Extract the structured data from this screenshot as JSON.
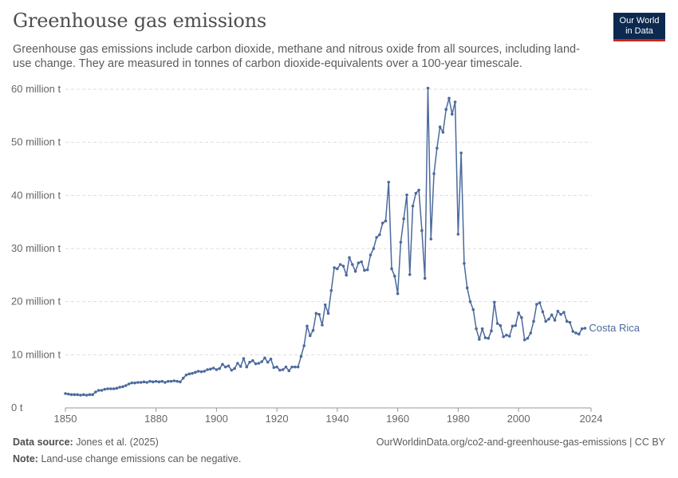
{
  "header": {
    "title": "Greenhouse gas emissions",
    "subtitle": "Greenhouse gas emissions include carbon dioxide, methane and nitrous oxide from all sources, including land-use change. They are measured in tonnes of carbon dioxide-equivalents over a 100-year timescale.",
    "logo_line1": "Our World",
    "logo_line2": "in Data"
  },
  "footer": {
    "source_label": "Data source:",
    "source_value": "Jones et al. (2025)",
    "url": "OurWorldinData.org/co2-and-greenhouse-gas-emissions",
    "license": "| CC BY",
    "note_label": "Note:",
    "note_value": "Land-use change emissions can be negative."
  },
  "colors": {
    "series": "#4c6a9c",
    "grid": "#dddddd",
    "axis": "#999999",
    "text": "#666666"
  },
  "chart_data": {
    "type": "line",
    "title": "Greenhouse gas emissions",
    "ylim": [
      0,
      60000000
    ],
    "xlim": [
      1850,
      2024
    ],
    "yticks": [
      {
        "value": 0,
        "label": "0 t"
      },
      {
        "value": 10000000,
        "label": "10 million t"
      },
      {
        "value": 20000000,
        "label": "20 million t"
      },
      {
        "value": 30000000,
        "label": "30 million t"
      },
      {
        "value": 40000000,
        "label": "40 million t"
      },
      {
        "value": 50000000,
        "label": "50 million t"
      },
      {
        "value": 60000000,
        "label": "60 million t"
      }
    ],
    "xticks": [
      {
        "value": 1850,
        "label": "1850"
      },
      {
        "value": 1880,
        "label": "1880"
      },
      {
        "value": 1900,
        "label": "1900"
      },
      {
        "value": 1920,
        "label": "1920"
      },
      {
        "value": 1940,
        "label": "1940"
      },
      {
        "value": 1960,
        "label": "1960"
      },
      {
        "value": 1980,
        "label": "1980"
      },
      {
        "value": 2000,
        "label": "2000"
      },
      {
        "value": 2024,
        "label": "2024"
      }
    ],
    "grid": true,
    "series": [
      {
        "name": "Costa Rica",
        "color": "#4c6a9c",
        "points": [
          [
            1850,
            2.7
          ],
          [
            1851,
            2.6
          ],
          [
            1852,
            2.5
          ],
          [
            1853,
            2.5
          ],
          [
            1854,
            2.5
          ],
          [
            1855,
            2.4
          ],
          [
            1856,
            2.5
          ],
          [
            1857,
            2.4
          ],
          [
            1858,
            2.5
          ],
          [
            1859,
            2.5
          ],
          [
            1860,
            3.0
          ],
          [
            1861,
            3.3
          ],
          [
            1862,
            3.3
          ],
          [
            1863,
            3.5
          ],
          [
            1864,
            3.6
          ],
          [
            1865,
            3.6
          ],
          [
            1866,
            3.6
          ],
          [
            1867,
            3.7
          ],
          [
            1868,
            3.9
          ],
          [
            1869,
            4.0
          ],
          [
            1870,
            4.2
          ],
          [
            1871,
            4.5
          ],
          [
            1872,
            4.7
          ],
          [
            1873,
            4.7
          ],
          [
            1874,
            4.8
          ],
          [
            1875,
            4.8
          ],
          [
            1876,
            4.9
          ],
          [
            1877,
            4.8
          ],
          [
            1878,
            5.0
          ],
          [
            1879,
            4.9
          ],
          [
            1880,
            5.0
          ],
          [
            1881,
            4.9
          ],
          [
            1882,
            5.0
          ],
          [
            1883,
            4.8
          ],
          [
            1884,
            5.0
          ],
          [
            1885,
            5.0
          ],
          [
            1886,
            5.1
          ],
          [
            1887,
            5.0
          ],
          [
            1888,
            4.9
          ],
          [
            1889,
            5.6
          ],
          [
            1890,
            6.2
          ],
          [
            1891,
            6.4
          ],
          [
            1892,
            6.5
          ],
          [
            1893,
            6.7
          ],
          [
            1894,
            6.9
          ],
          [
            1895,
            6.8
          ],
          [
            1896,
            6.9
          ],
          [
            1897,
            7.2
          ],
          [
            1898,
            7.3
          ],
          [
            1899,
            7.5
          ],
          [
            1900,
            7.2
          ],
          [
            1901,
            7.4
          ],
          [
            1902,
            8.2
          ],
          [
            1903,
            7.7
          ],
          [
            1904,
            7.9
          ],
          [
            1905,
            7.1
          ],
          [
            1906,
            7.4
          ],
          [
            1907,
            8.4
          ],
          [
            1908,
            7.8
          ],
          [
            1909,
            9.3
          ],
          [
            1910,
            7.7
          ],
          [
            1911,
            8.6
          ],
          [
            1912,
            8.9
          ],
          [
            1913,
            8.3
          ],
          [
            1914,
            8.4
          ],
          [
            1915,
            8.7
          ],
          [
            1916,
            9.4
          ],
          [
            1917,
            8.6
          ],
          [
            1918,
            9.2
          ],
          [
            1919,
            7.6
          ],
          [
            1920,
            7.7
          ],
          [
            1921,
            7.1
          ],
          [
            1922,
            7.2
          ],
          [
            1923,
            7.7
          ],
          [
            1924,
            7.0
          ],
          [
            1925,
            7.7
          ],
          [
            1926,
            7.7
          ],
          [
            1927,
            7.7
          ],
          [
            1928,
            9.7
          ],
          [
            1929,
            11.7
          ],
          [
            1930,
            15.4
          ],
          [
            1931,
            13.6
          ],
          [
            1932,
            14.6
          ],
          [
            1933,
            17.8
          ],
          [
            1934,
            17.6
          ],
          [
            1935,
            15.6
          ],
          [
            1936,
            19.4
          ],
          [
            1937,
            17.8
          ],
          [
            1938,
            22.1
          ],
          [
            1939,
            26.4
          ],
          [
            1940,
            26.2
          ],
          [
            1941,
            27.0
          ],
          [
            1942,
            26.7
          ],
          [
            1943,
            25.0
          ],
          [
            1944,
            28.3
          ],
          [
            1945,
            27.0
          ],
          [
            1946,
            25.7
          ],
          [
            1947,
            27.3
          ],
          [
            1948,
            27.5
          ],
          [
            1949,
            25.9
          ],
          [
            1950,
            26.0
          ],
          [
            1951,
            28.8
          ],
          [
            1952,
            30.0
          ],
          [
            1953,
            32.1
          ],
          [
            1954,
            32.6
          ],
          [
            1955,
            34.8
          ],
          [
            1956,
            35.2
          ],
          [
            1957,
            42.5
          ],
          [
            1958,
            26.2
          ],
          [
            1959,
            24.8
          ],
          [
            1960,
            21.5
          ],
          [
            1961,
            31.2
          ],
          [
            1962,
            35.6
          ],
          [
            1963,
            40.1
          ],
          [
            1964,
            25.1
          ],
          [
            1965,
            38.0
          ],
          [
            1966,
            40.4
          ],
          [
            1967,
            41.0
          ],
          [
            1968,
            33.4
          ],
          [
            1969,
            24.4
          ],
          [
            1970,
            60.2
          ],
          [
            1971,
            31.8
          ],
          [
            1972,
            44.1
          ],
          [
            1973,
            48.9
          ],
          [
            1974,
            52.9
          ],
          [
            1975,
            51.9
          ],
          [
            1976,
            56.2
          ],
          [
            1977,
            58.3
          ],
          [
            1978,
            55.3
          ],
          [
            1979,
            57.6
          ],
          [
            1980,
            32.7
          ],
          [
            1981,
            48.0
          ],
          [
            1982,
            27.2
          ],
          [
            1983,
            22.6
          ],
          [
            1984,
            20.0
          ],
          [
            1985,
            18.5
          ],
          [
            1986,
            14.9
          ],
          [
            1987,
            12.9
          ],
          [
            1988,
            14.9
          ],
          [
            1989,
            13.2
          ],
          [
            1990,
            13.1
          ],
          [
            1991,
            14.5
          ],
          [
            1992,
            19.9
          ],
          [
            1993,
            15.9
          ],
          [
            1994,
            15.5
          ],
          [
            1995,
            13.4
          ],
          [
            1996,
            13.7
          ],
          [
            1997,
            13.5
          ],
          [
            1998,
            15.4
          ],
          [
            1999,
            15.5
          ],
          [
            2000,
            17.9
          ],
          [
            2001,
            17.0
          ],
          [
            2002,
            12.8
          ],
          [
            2003,
            13.1
          ],
          [
            2004,
            14.1
          ],
          [
            2005,
            16.3
          ],
          [
            2006,
            19.5
          ],
          [
            2007,
            19.8
          ],
          [
            2008,
            18.1
          ],
          [
            2009,
            16.3
          ],
          [
            2010,
            16.7
          ],
          [
            2011,
            17.5
          ],
          [
            2012,
            16.5
          ],
          [
            2013,
            18.2
          ],
          [
            2014,
            17.6
          ],
          [
            2015,
            18.0
          ],
          [
            2016,
            16.3
          ],
          [
            2017,
            16.1
          ],
          [
            2018,
            14.4
          ],
          [
            2019,
            14.1
          ],
          [
            2020,
            13.9
          ],
          [
            2021,
            14.9
          ],
          [
            2022,
            15.0
          ]
        ],
        "unit_multiplier": 1000000
      }
    ]
  }
}
